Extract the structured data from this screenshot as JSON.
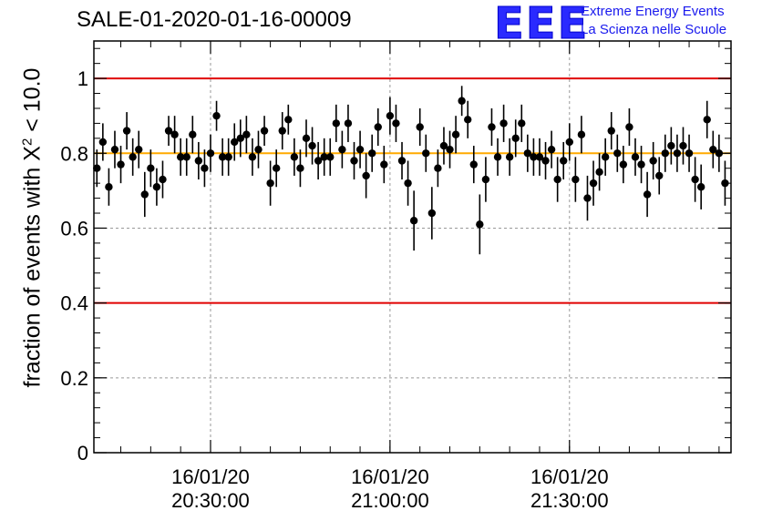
{
  "header": {
    "title": "SALE-01-2020-01-16-00009",
    "logo_text": "EEE",
    "logo_line1": "Extreme Energy Events",
    "logo_line2": "La Scienza nelle Scuole"
  },
  "colors": {
    "limit_line": "#e00000",
    "reference_line": "#ffaa00",
    "marker": "#000000",
    "grid": "#999999",
    "logo": "#2a2aff"
  },
  "chart_data": {
    "type": "scatter",
    "title": "SALE-01-2020-01-16-00009",
    "xlabel": "",
    "ylabel_prefix": "fraction of events with ",
    "ylabel_symbol": "X",
    "ylabel_exponent": "2",
    "ylabel_suffix": " < 10.0",
    "ylim": [
      0,
      1.1
    ],
    "yticks": [
      0,
      0.2,
      0.4,
      0.6,
      0.8,
      1
    ],
    "ytick_labels": [
      "0",
      "0.2",
      "0.4",
      "0.6",
      "0.8",
      "1"
    ],
    "xlim": [
      "16/01/20 20:10:30",
      "16/01/20 21:57:00"
    ],
    "xticks": [
      {
        "date": "16/01/20",
        "time": "20:30:00"
      },
      {
        "date": "16/01/20",
        "time": "21:00:00"
      },
      {
        "date": "16/01/20",
        "time": "21:30:00"
      }
    ],
    "grid": true,
    "reference_lines": [
      {
        "y": 1.0,
        "color": "#e00000"
      },
      {
        "y": 0.4,
        "color": "#e00000"
      },
      {
        "y": 0.8,
        "color": "#ffaa00"
      }
    ],
    "series": [
      {
        "x_start": "16/01/20 20:11:00",
        "x_step_seconds": 60,
        "values": [
          0.76,
          0.83,
          0.71,
          0.81,
          0.77,
          0.86,
          0.79,
          0.81,
          0.69,
          0.76,
          0.71,
          0.73,
          0.86,
          0.85,
          0.79,
          0.79,
          0.85,
          0.78,
          0.76,
          0.8,
          0.9,
          0.79,
          0.79,
          0.83,
          0.84,
          0.85,
          0.79,
          0.81,
          0.86,
          0.72,
          0.76,
          0.86,
          0.89,
          0.79,
          0.76,
          0.84,
          0.82,
          0.78,
          0.79,
          0.79,
          0.88,
          0.81,
          0.88,
          0.78,
          0.81,
          0.74,
          0.8,
          0.87,
          0.77,
          0.9,
          0.88,
          0.78,
          0.72,
          0.62,
          0.87,
          0.8,
          0.64,
          0.76,
          0.82,
          0.81,
          0.85,
          0.94,
          0.89,
          0.77,
          0.61,
          0.73,
          0.87,
          0.79,
          0.88,
          0.79,
          0.84,
          0.88,
          0.8,
          0.79,
          0.79,
          0.78,
          0.81,
          0.73,
          0.78,
          0.83,
          0.73,
          0.85,
          0.68,
          0.72,
          0.75,
          0.79,
          0.86,
          0.8,
          0.77,
          0.87,
          0.79,
          0.77,
          0.69,
          0.78,
          0.74,
          0.8,
          0.82,
          0.8,
          0.82,
          0.8,
          0.73,
          0.71,
          0.89,
          0.81,
          0.8,
          0.72
        ],
        "errors": [
          0.05,
          0.05,
          0.05,
          0.05,
          0.05,
          0.05,
          0.05,
          0.05,
          0.06,
          0.05,
          0.05,
          0.05,
          0.04,
          0.05,
          0.05,
          0.05,
          0.05,
          0.05,
          0.05,
          0.05,
          0.04,
          0.05,
          0.05,
          0.05,
          0.05,
          0.05,
          0.05,
          0.05,
          0.04,
          0.06,
          0.05,
          0.05,
          0.04,
          0.05,
          0.05,
          0.05,
          0.05,
          0.05,
          0.05,
          0.05,
          0.05,
          0.05,
          0.05,
          0.05,
          0.05,
          0.06,
          0.05,
          0.05,
          0.05,
          0.05,
          0.05,
          0.05,
          0.06,
          0.08,
          0.05,
          0.05,
          0.07,
          0.05,
          0.05,
          0.05,
          0.05,
          0.04,
          0.05,
          0.05,
          0.08,
          0.06,
          0.05,
          0.05,
          0.05,
          0.05,
          0.05,
          0.05,
          0.05,
          0.05,
          0.05,
          0.05,
          0.05,
          0.06,
          0.05,
          0.05,
          0.06,
          0.05,
          0.06,
          0.06,
          0.05,
          0.05,
          0.05,
          0.05,
          0.05,
          0.05,
          0.05,
          0.05,
          0.06,
          0.05,
          0.05,
          0.05,
          0.05,
          0.05,
          0.05,
          0.05,
          0.06,
          0.06,
          0.05,
          0.05,
          0.05,
          0.06
        ]
      }
    ]
  }
}
